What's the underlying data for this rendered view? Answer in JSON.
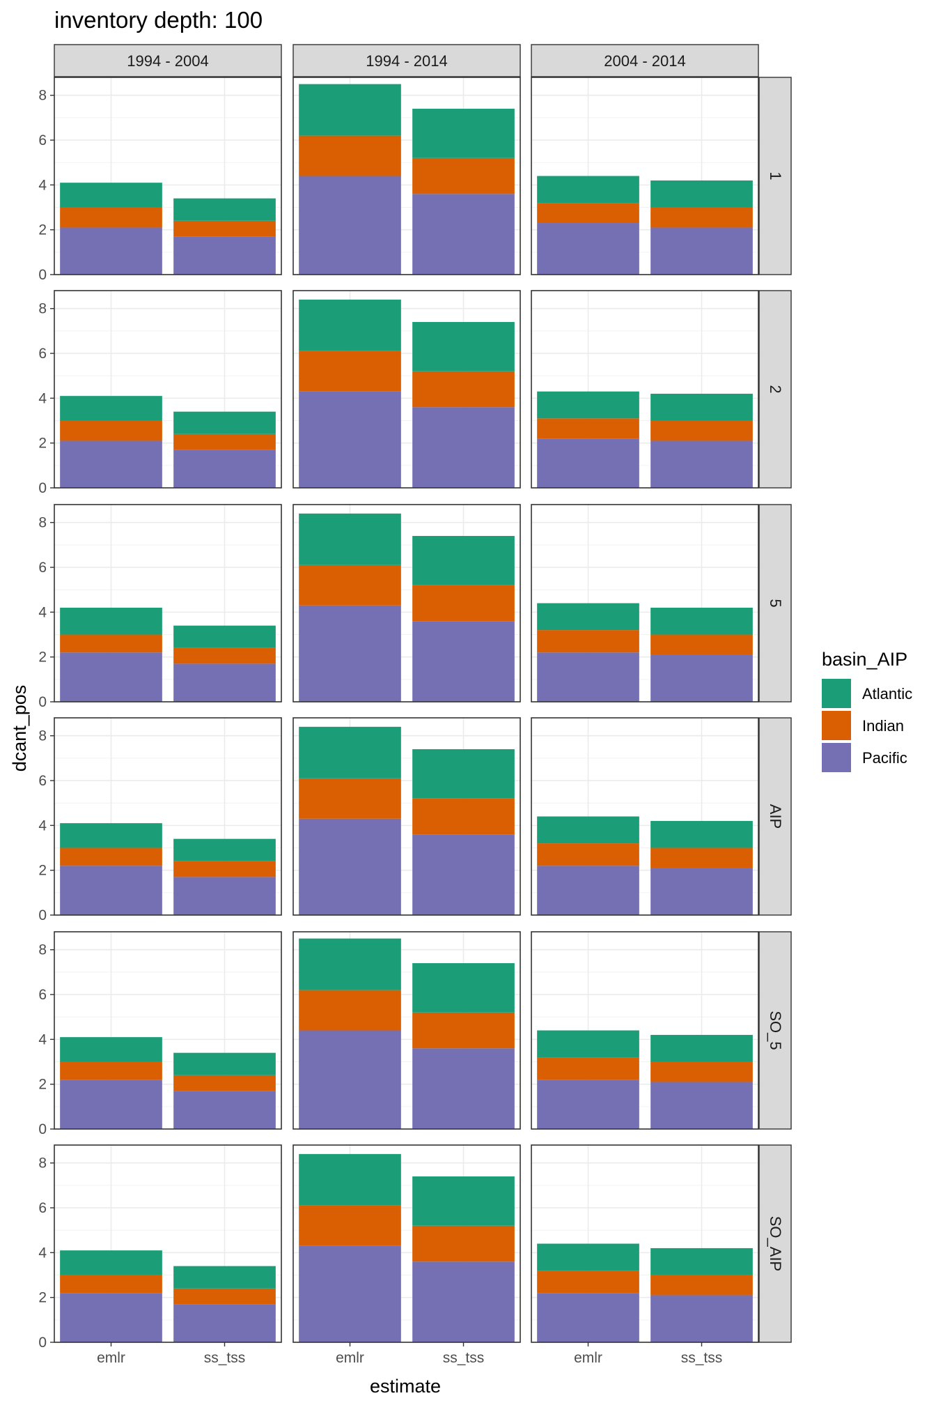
{
  "chart_data": {
    "type": "bar",
    "stacked": true,
    "title": "inventory depth: 100",
    "xlabel": "estimate",
    "ylabel": "dcant_pos",
    "ylim": [
      0,
      8.8
    ],
    "yticks": [
      0,
      2,
      4,
      6,
      8
    ],
    "categories": [
      "emlr",
      "ss_tss"
    ],
    "facet_cols": [
      "1994 - 2004",
      "1994 - 2014",
      "2004 - 2014"
    ],
    "facet_rows": [
      "1",
      "2",
      "5",
      "AIP",
      "SO_5",
      "SO_AIP"
    ],
    "legend": {
      "title": "basin_AIP",
      "position": "right",
      "entries": [
        "Atlantic",
        "Indian",
        "Pacific"
      ]
    },
    "series_colors": {
      "Pacific": "#7570b3",
      "Indian": "#d95f02",
      "Atlantic": "#1b9e77"
    },
    "stack_order": [
      "Pacific",
      "Indian",
      "Atlantic"
    ],
    "panels": [
      [
        {
          "emlr": {
            "Pacific": 2.1,
            "Indian": 0.9,
            "Atlantic": 1.1
          },
          "ss_tss": {
            "Pacific": 1.7,
            "Indian": 0.7,
            "Atlantic": 1.0
          }
        },
        {
          "emlr": {
            "Pacific": 4.4,
            "Indian": 1.8,
            "Atlantic": 2.3
          },
          "ss_tss": {
            "Pacific": 3.6,
            "Indian": 1.6,
            "Atlantic": 2.2
          }
        },
        {
          "emlr": {
            "Pacific": 2.3,
            "Indian": 0.9,
            "Atlantic": 1.2
          },
          "ss_tss": {
            "Pacific": 2.1,
            "Indian": 0.9,
            "Atlantic": 1.2
          }
        }
      ],
      [
        {
          "emlr": {
            "Pacific": 2.1,
            "Indian": 0.9,
            "Atlantic": 1.1
          },
          "ss_tss": {
            "Pacific": 1.7,
            "Indian": 0.7,
            "Atlantic": 1.0
          }
        },
        {
          "emlr": {
            "Pacific": 4.3,
            "Indian": 1.8,
            "Atlantic": 2.3
          },
          "ss_tss": {
            "Pacific": 3.6,
            "Indian": 1.6,
            "Atlantic": 2.2
          }
        },
        {
          "emlr": {
            "Pacific": 2.2,
            "Indian": 0.9,
            "Atlantic": 1.2
          },
          "ss_tss": {
            "Pacific": 2.1,
            "Indian": 0.9,
            "Atlantic": 1.2
          }
        }
      ],
      [
        {
          "emlr": {
            "Pacific": 2.2,
            "Indian": 0.8,
            "Atlantic": 1.2
          },
          "ss_tss": {
            "Pacific": 1.7,
            "Indian": 0.7,
            "Atlantic": 1.0
          }
        },
        {
          "emlr": {
            "Pacific": 4.3,
            "Indian": 1.8,
            "Atlantic": 2.3
          },
          "ss_tss": {
            "Pacific": 3.6,
            "Indian": 1.6,
            "Atlantic": 2.2
          }
        },
        {
          "emlr": {
            "Pacific": 2.2,
            "Indian": 1.0,
            "Atlantic": 1.2
          },
          "ss_tss": {
            "Pacific": 2.1,
            "Indian": 0.9,
            "Atlantic": 1.2
          }
        }
      ],
      [
        {
          "emlr": {
            "Pacific": 2.2,
            "Indian": 0.8,
            "Atlantic": 1.1
          },
          "ss_tss": {
            "Pacific": 1.7,
            "Indian": 0.7,
            "Atlantic": 1.0
          }
        },
        {
          "emlr": {
            "Pacific": 4.3,
            "Indian": 1.8,
            "Atlantic": 2.3
          },
          "ss_tss": {
            "Pacific": 3.6,
            "Indian": 1.6,
            "Atlantic": 2.2
          }
        },
        {
          "emlr": {
            "Pacific": 2.2,
            "Indian": 1.0,
            "Atlantic": 1.2
          },
          "ss_tss": {
            "Pacific": 2.1,
            "Indian": 0.9,
            "Atlantic": 1.2
          }
        }
      ],
      [
        {
          "emlr": {
            "Pacific": 2.2,
            "Indian": 0.8,
            "Atlantic": 1.1
          },
          "ss_tss": {
            "Pacific": 1.7,
            "Indian": 0.7,
            "Atlantic": 1.0
          }
        },
        {
          "emlr": {
            "Pacific": 4.4,
            "Indian": 1.8,
            "Atlantic": 2.3
          },
          "ss_tss": {
            "Pacific": 3.6,
            "Indian": 1.6,
            "Atlantic": 2.2
          }
        },
        {
          "emlr": {
            "Pacific": 2.2,
            "Indian": 1.0,
            "Atlantic": 1.2
          },
          "ss_tss": {
            "Pacific": 2.1,
            "Indian": 0.9,
            "Atlantic": 1.2
          }
        }
      ],
      [
        {
          "emlr": {
            "Pacific": 2.2,
            "Indian": 0.8,
            "Atlantic": 1.1
          },
          "ss_tss": {
            "Pacific": 1.7,
            "Indian": 0.7,
            "Atlantic": 1.0
          }
        },
        {
          "emlr": {
            "Pacific": 4.3,
            "Indian": 1.8,
            "Atlantic": 2.3
          },
          "ss_tss": {
            "Pacific": 3.6,
            "Indian": 1.6,
            "Atlantic": 2.2
          }
        },
        {
          "emlr": {
            "Pacific": 2.2,
            "Indian": 1.0,
            "Atlantic": 1.2
          },
          "ss_tss": {
            "Pacific": 2.1,
            "Indian": 0.9,
            "Atlantic": 1.2
          }
        }
      ]
    ]
  }
}
